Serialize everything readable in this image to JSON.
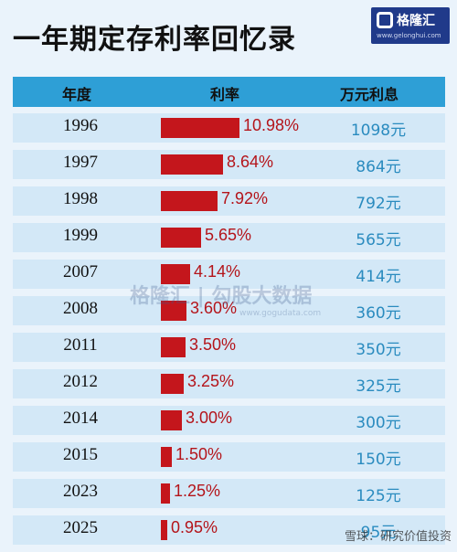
{
  "header": {
    "title": "一年期定存利率回忆录",
    "logo_name": "格隆汇",
    "logo_site": "www.gelonghui.com"
  },
  "table": {
    "columns": [
      "年度",
      "利率",
      "万元利息"
    ]
  },
  "chart_data": {
    "type": "bar",
    "title": "一年期定存利率回忆录",
    "categories": [
      "1996",
      "1997",
      "1998",
      "1999",
      "2007",
      "2008",
      "2011",
      "2012",
      "2014",
      "2015",
      "2023",
      "2025"
    ],
    "values": [
      10.98,
      8.64,
      7.92,
      5.65,
      4.14,
      3.6,
      3.5,
      3.25,
      3.0,
      1.5,
      1.25,
      0.95
    ],
    "value_labels": [
      "10.98%",
      "8.64%",
      "7.92%",
      "5.65%",
      "4.14%",
      "3.60%",
      "3.50%",
      "3.25%",
      "3.00%",
      "1.50%",
      "1.25%",
      "0.95%"
    ],
    "interest": [
      "1098元",
      "864元",
      "792元",
      "565元",
      "414元",
      "360元",
      "350元",
      "325元",
      "300元",
      "150元",
      "125元",
      "95元"
    ],
    "bar_color": "#c4161c",
    "orientation": "horizontal"
  },
  "watermarks": {
    "center": "格隆汇 | 勾股大数据",
    "center_site": "www.gogudata.com",
    "corner": "雪球：研究价值投资"
  },
  "colors": {
    "header_bg": "#2e9fd6",
    "row_bg": "#d3e8f7",
    "page_bg": "#eaf3fb",
    "interest_text": "#2a8bbf"
  }
}
